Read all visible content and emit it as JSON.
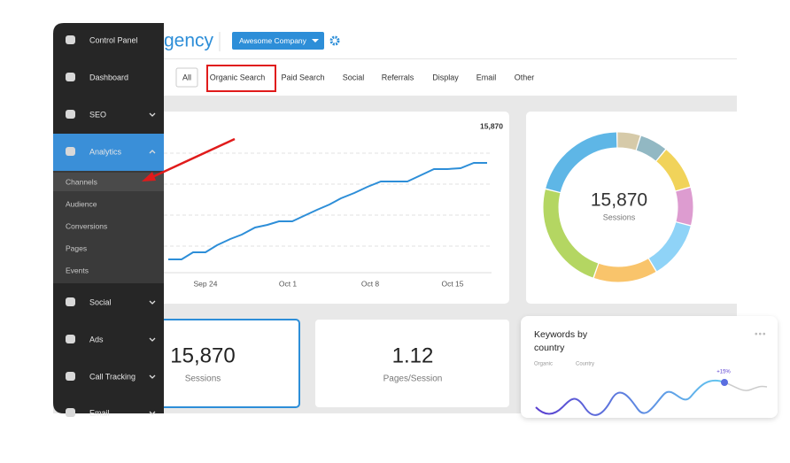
{
  "header": {
    "title": "gency",
    "company_button": "Awesome Company"
  },
  "tabs": [
    "All",
    "Organic Search",
    "Paid Search",
    "Social",
    "Referrals",
    "Display",
    "Email",
    "Other"
  ],
  "sidebar": {
    "items": [
      "Control Panel",
      "Dashboard",
      "SEO",
      "Analytics",
      "Social",
      "Ads",
      "Call Tracking",
      "Email"
    ],
    "submenu": [
      "Channels",
      "Audience",
      "Conversions",
      "Pages",
      "Events"
    ]
  },
  "line_card": {
    "peak_label": "15,870",
    "x_labels": [
      "Sep 24",
      "Oct 1",
      "Oct 8",
      "Oct 15"
    ]
  },
  "donut_card": {
    "value": "15,870",
    "label": "Sessions"
  },
  "stat_cards": [
    {
      "value": "15,870",
      "label": "Sessions"
    },
    {
      "value": "1.12",
      "label": "Pages/Session"
    }
  ],
  "keywords_card": {
    "title_lines": [
      "Keywords by",
      "country"
    ],
    "filters": [
      "Organic",
      "Country"
    ],
    "badge": "+15%"
  }
}
